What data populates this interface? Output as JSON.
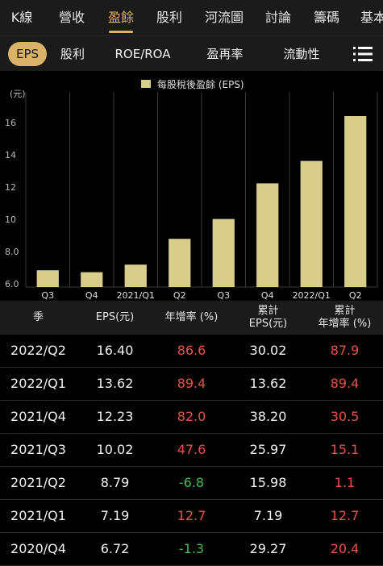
{
  "top_tabs": [
    "K線",
    "營收",
    "盈餘",
    "股利",
    "河流圖",
    "討論",
    "籌碼",
    "基本"
  ],
  "top_tab_active": 2,
  "sub_tabs": [
    "EPS",
    "股利",
    "ROE/ROA",
    "盈再率",
    "流動性"
  ],
  "sub_tab_active": 0,
  "menu_icon": "hamburger-menu-icon",
  "colors": {
    "accent": "#d9b36a",
    "bar": "#d8cd8a",
    "up": "#e5534b",
    "down": "#3fbf4f"
  },
  "chart_data": {
    "type": "bar",
    "legend": "每股稅後盈餘 (EPS)",
    "ylabel": "(元)",
    "categories": [
      "Q3",
      "Q4",
      "2021/Q1",
      "Q2",
      "Q3",
      "Q4",
      "2022/Q1",
      "Q2"
    ],
    "values": [
      6.84,
      6.72,
      7.19,
      8.79,
      10.02,
      12.23,
      13.62,
      16.4
    ],
    "ylim": [
      5.8,
      17.2
    ],
    "yticks": [
      "6.0",
      "8.0",
      "10",
      "12",
      "14",
      "16"
    ],
    "ytick_values": [
      6,
      8,
      10,
      12,
      14,
      16
    ],
    "grid": "vertical"
  },
  "table": {
    "headers": [
      {
        "line1": "季",
        "line2": ""
      },
      {
        "line1": "EPS(元)",
        "line2": ""
      },
      {
        "line1": "年增率 (%)",
        "line2": ""
      },
      {
        "line1": "累計",
        "line2": "EPS(元)"
      },
      {
        "line1": "累計",
        "line2": "年增率 (%)"
      }
    ],
    "rows": [
      {
        "season": "2022/Q2",
        "eps": "16.40",
        "yoy": "86.6",
        "yoy_dir": "up",
        "cum_eps": "30.02",
        "cum_yoy": "87.9",
        "cum_dir": "up"
      },
      {
        "season": "2022/Q1",
        "eps": "13.62",
        "yoy": "89.4",
        "yoy_dir": "up",
        "cum_eps": "13.62",
        "cum_yoy": "89.4",
        "cum_dir": "up"
      },
      {
        "season": "2021/Q4",
        "eps": "12.23",
        "yoy": "82.0",
        "yoy_dir": "up",
        "cum_eps": "38.20",
        "cum_yoy": "30.5",
        "cum_dir": "up"
      },
      {
        "season": "2021/Q3",
        "eps": "10.02",
        "yoy": "47.6",
        "yoy_dir": "up",
        "cum_eps": "25.97",
        "cum_yoy": "15.1",
        "cum_dir": "up"
      },
      {
        "season": "2021/Q2",
        "eps": "8.79",
        "yoy": "-6.8",
        "yoy_dir": "down",
        "cum_eps": "15.98",
        "cum_yoy": "1.1",
        "cum_dir": "up"
      },
      {
        "season": "2021/Q1",
        "eps": "7.19",
        "yoy": "12.7",
        "yoy_dir": "up",
        "cum_eps": "7.19",
        "cum_yoy": "12.7",
        "cum_dir": "up"
      },
      {
        "season": "2020/Q4",
        "eps": "6.72",
        "yoy": "-1.3",
        "yoy_dir": "down",
        "cum_eps": "29.27",
        "cum_yoy": "20.4",
        "cum_dir": "up"
      }
    ]
  }
}
